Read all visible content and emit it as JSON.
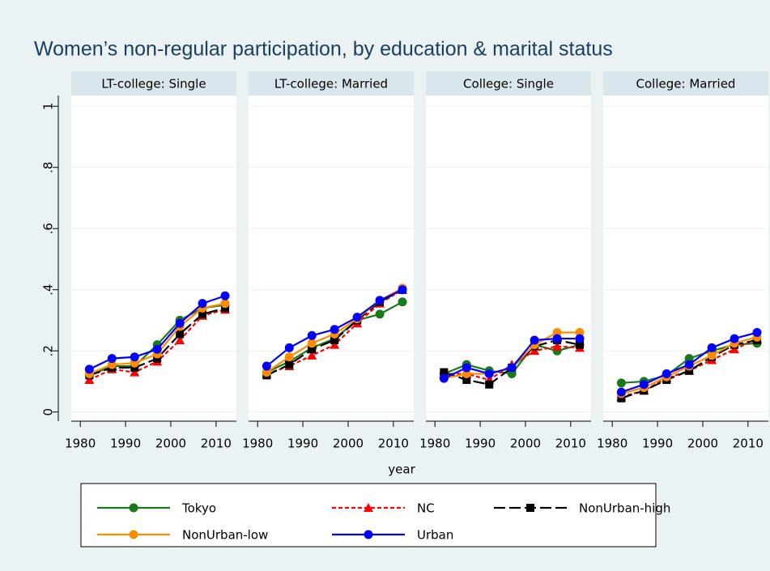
{
  "figure": {
    "title": "Women’s non-regular participation, by education & marital status",
    "x_label": "year"
  },
  "chart_data": [
    {
      "type": "line",
      "title": "LT-college: Single",
      "x": [
        1982,
        1987,
        1992,
        1997,
        2002,
        2007,
        2012
      ],
      "xlim": [
        1978,
        2014.5
      ],
      "xticks": [
        1980,
        1990,
        2000,
        2010
      ],
      "ylim": [
        -0.03,
        1.035
      ],
      "yticks": [
        0,
        {
          "value": 0.2,
          "label": ".2"
        },
        {
          "value": 0.4,
          "label": ".4"
        },
        {
          "value": 0.6,
          "label": ".6"
        },
        {
          "value": 0.8,
          "label": ".8"
        },
        1
      ],
      "grid": true,
      "series": [
        {
          "name": "Tokyo",
          "color": "#1a7a1a",
          "dash": "solid",
          "marker": "circle",
          "values": [
            0.12,
            0.15,
            0.15,
            0.22,
            0.3,
            0.34,
            0.35
          ]
        },
        {
          "name": "NC",
          "color": "#ff0000",
          "dash": "short",
          "marker": "triangle",
          "values": [
            0.105,
            0.14,
            0.13,
            0.165,
            0.235,
            0.315,
            0.335
          ]
        },
        {
          "name": "NonUrban-high",
          "color": "#000000",
          "dash": "long",
          "marker": "square",
          "values": [
            0.12,
            0.145,
            0.145,
            0.175,
            0.255,
            0.32,
            0.34
          ]
        },
        {
          "name": "NonUrban-low",
          "color": "#ff8c00",
          "dash": "solid",
          "marker": "circle",
          "values": [
            0.125,
            0.155,
            0.16,
            0.19,
            0.28,
            0.34,
            0.355
          ]
        },
        {
          "name": "Urban",
          "color": "#0000ff",
          "dash": "solid",
          "marker": "circle",
          "values": [
            0.14,
            0.175,
            0.18,
            0.205,
            0.29,
            0.355,
            0.38
          ]
        }
      ]
    },
    {
      "type": "line",
      "title": "LT-college: Married",
      "x": [
        1982,
        1987,
        1992,
        1997,
        2002,
        2007,
        2012
      ],
      "xlim": [
        1978,
        2014.5
      ],
      "xticks": [
        1980,
        1990,
        2000,
        2010
      ],
      "ylim": [
        -0.03,
        1.035
      ],
      "yticks": [
        0,
        {
          "value": 0.2,
          "label": ".2"
        },
        {
          "value": 0.4,
          "label": ".4"
        },
        {
          "value": 0.6,
          "label": ".6"
        },
        {
          "value": 0.8,
          "label": ".8"
        },
        1
      ],
      "grid": true,
      "series": [
        {
          "name": "Tokyo",
          "color": "#1a7a1a",
          "dash": "solid",
          "marker": "circle",
          "values": [
            0.13,
            0.165,
            0.21,
            0.24,
            0.3,
            0.32,
            0.36
          ]
        },
        {
          "name": "NC",
          "color": "#ff0000",
          "dash": "short",
          "marker": "triangle",
          "values": [
            0.125,
            0.15,
            0.185,
            0.22,
            0.29,
            0.355,
            0.4
          ]
        },
        {
          "name": "NonUrban-high",
          "color": "#000000",
          "dash": "long",
          "marker": "square",
          "values": [
            0.12,
            0.155,
            0.205,
            0.235,
            0.3,
            0.36,
            0.4
          ]
        },
        {
          "name": "NonUrban-low",
          "color": "#ff8c00",
          "dash": "solid",
          "marker": "circle",
          "values": [
            0.13,
            0.18,
            0.225,
            0.255,
            0.305,
            0.365,
            0.405
          ]
        },
        {
          "name": "Urban",
          "color": "#0000ff",
          "dash": "solid",
          "marker": "circle",
          "values": [
            0.15,
            0.21,
            0.25,
            0.27,
            0.31,
            0.365,
            0.4
          ]
        }
      ]
    },
    {
      "type": "line",
      "title": "College: Single",
      "x": [
        1982,
        1987,
        1992,
        1997,
        2002,
        2007,
        2012
      ],
      "xlim": [
        1978,
        2014.5
      ],
      "xticks": [
        1980,
        1990,
        2000,
        2010
      ],
      "ylim": [
        -0.03,
        1.035
      ],
      "yticks": [
        0,
        {
          "value": 0.2,
          "label": ".2"
        },
        {
          "value": 0.4,
          "label": ".4"
        },
        {
          "value": 0.6,
          "label": ".6"
        },
        {
          "value": 0.8,
          "label": ".8"
        },
        1
      ],
      "grid": true,
      "series": [
        {
          "name": "Tokyo",
          "color": "#1a7a1a",
          "dash": "solid",
          "marker": "circle",
          "values": [
            0.125,
            0.155,
            0.135,
            0.125,
            0.22,
            0.2,
            0.22
          ]
        },
        {
          "name": "NC",
          "color": "#ff0000",
          "dash": "short",
          "marker": "triangle",
          "values": [
            0.125,
            0.125,
            0.105,
            0.155,
            0.2,
            0.215,
            0.21
          ]
        },
        {
          "name": "NonUrban-high",
          "color": "#000000",
          "dash": "long",
          "marker": "square",
          "values": [
            0.13,
            0.105,
            0.09,
            0.145,
            0.215,
            0.235,
            0.22
          ]
        },
        {
          "name": "NonUrban-low",
          "color": "#ff8c00",
          "dash": "solid",
          "marker": "circle",
          "values": [
            0.11,
            0.125,
            0.125,
            0.145,
            0.22,
            0.26,
            0.26
          ]
        },
        {
          "name": "Urban",
          "color": "#0000ff",
          "dash": "solid",
          "marker": "circle",
          "values": [
            0.11,
            0.145,
            0.125,
            0.145,
            0.235,
            0.24,
            0.24
          ]
        }
      ]
    },
    {
      "type": "line",
      "title": "College: Married",
      "x": [
        1982,
        1987,
        1992,
        1997,
        2002,
        2007,
        2012
      ],
      "xlim": [
        1978,
        2014.5
      ],
      "xticks": [
        1980,
        1990,
        2000,
        2010
      ],
      "ylim": [
        -0.03,
        1.035
      ],
      "yticks": [
        0,
        {
          "value": 0.2,
          "label": ".2"
        },
        {
          "value": 0.4,
          "label": ".4"
        },
        {
          "value": 0.6,
          "label": ".6"
        },
        {
          "value": 0.8,
          "label": ".8"
        },
        1
      ],
      "grid": true,
      "series": [
        {
          "name": "Tokyo",
          "color": "#1a7a1a",
          "dash": "solid",
          "marker": "circle",
          "values": [
            0.095,
            0.1,
            0.12,
            0.175,
            0.2,
            0.22,
            0.225
          ]
        },
        {
          "name": "NC",
          "color": "#ff0000",
          "dash": "short",
          "marker": "triangle",
          "values": [
            0.05,
            0.07,
            0.11,
            0.135,
            0.17,
            0.205,
            0.24
          ]
        },
        {
          "name": "NonUrban-high",
          "color": "#000000",
          "dash": "long",
          "marker": "square",
          "values": [
            0.045,
            0.07,
            0.105,
            0.135,
            0.18,
            0.22,
            0.235
          ]
        },
        {
          "name": "NonUrban-low",
          "color": "#ff8c00",
          "dash": "solid",
          "marker": "circle",
          "values": [
            0.06,
            0.08,
            0.115,
            0.15,
            0.185,
            0.225,
            0.245
          ]
        },
        {
          "name": "Urban",
          "color": "#0000ff",
          "dash": "solid",
          "marker": "circle",
          "values": [
            0.065,
            0.09,
            0.125,
            0.155,
            0.21,
            0.24,
            0.26
          ]
        }
      ]
    }
  ]
}
